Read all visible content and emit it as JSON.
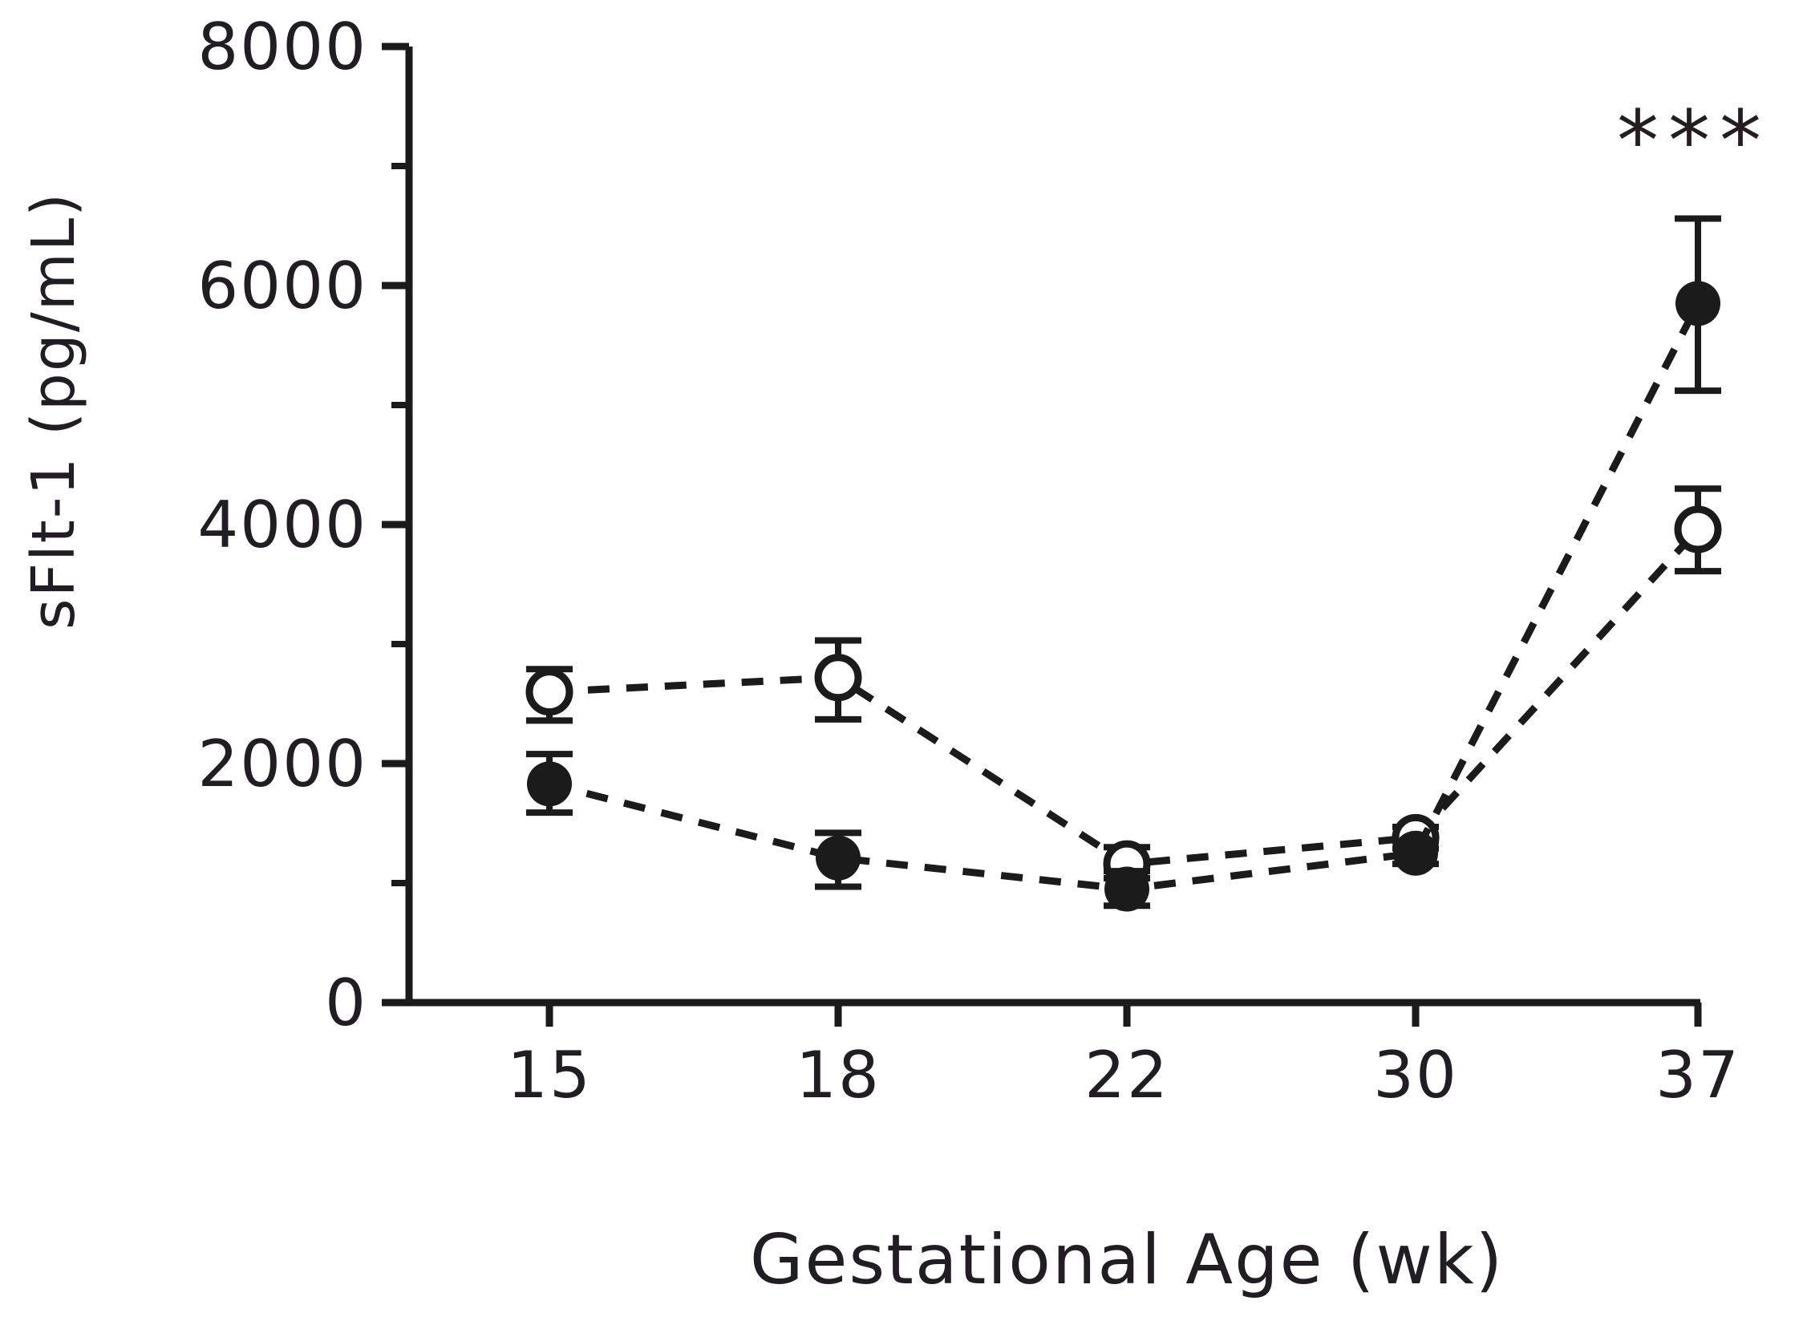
{
  "figure": {
    "background": "#ffffff",
    "ink_color": "#1b1b1b",
    "text_color": "#221d24"
  },
  "chart_data": {
    "type": "line",
    "title": "",
    "xlabel": "Gestational Age (wk)",
    "ylabel": "sFlt-1 (pg/mL)",
    "x_tick_labels": [
      "15",
      "18",
      "22",
      "30",
      "37"
    ],
    "ylim": [
      0,
      8000
    ],
    "y_major_ticks": [
      0,
      2000,
      4000,
      6000,
      8000
    ],
    "y_minor_ticks": [
      1000,
      3000,
      5000,
      7000
    ],
    "grid": "off",
    "legend": "none",
    "annotation": {
      "text": "***",
      "x_category": "37",
      "y_value": 7260
    },
    "series": [
      {
        "name": "open-circle-series",
        "marker": "open-circle",
        "line_style": "dashed",
        "values": [
          2600,
          2720,
          1160,
          1380,
          3960
        ],
        "err_low": [
          2360,
          2370,
          1040,
          1290,
          3610
        ],
        "err_high": [
          2790,
          3030,
          1300,
          1470,
          4300
        ]
      },
      {
        "name": "filled-circle-series",
        "marker": "filled-circle",
        "line_style": "dashed",
        "values": [
          1830,
          1210,
          950,
          1250,
          5850
        ],
        "err_low": [
          1590,
          970,
          810,
          1160,
          5120
        ],
        "err_high": [
          2080,
          1420,
          1100,
          1350,
          6560
        ]
      }
    ]
  }
}
